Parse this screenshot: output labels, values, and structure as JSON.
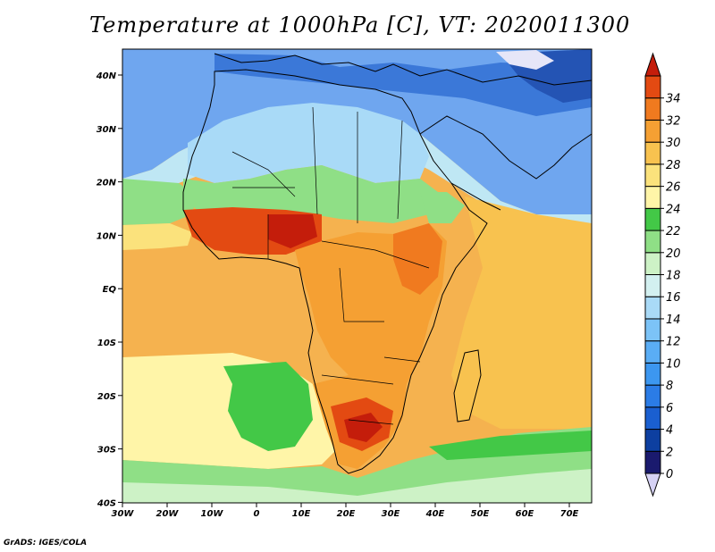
{
  "title": "Temperature at 1000hPa [C], VT: 2020011300",
  "credit": "GrADS: IGES/COLA",
  "lon_ticks": [
    "30W",
    "20W",
    "10W",
    "0",
    "10E",
    "20E",
    "30E",
    "40E",
    "50E",
    "60E",
    "70E"
  ],
  "lat_ticks": [
    "40N",
    "30N",
    "20N",
    "10N",
    "EQ",
    "10S",
    "20S",
    "30S",
    "40S"
  ],
  "colorbar": {
    "labels": [
      "0",
      "2",
      "4",
      "6",
      "8",
      "10",
      "12",
      "14",
      "16",
      "18",
      "20",
      "22",
      "24",
      "26",
      "28",
      "30",
      "32",
      "34"
    ],
    "colors": [
      "#1a1a6e",
      "#0d3fa0",
      "#1a5fd0",
      "#2b7ce6",
      "#3c97f0",
      "#5aadf5",
      "#7cc3f7",
      "#a9daf7",
      "#d3f0f0",
      "#cdf2c6",
      "#8fdf86",
      "#43c847",
      "#fff5a8",
      "#fbe27c",
      "#f8c24f",
      "#f5a033",
      "#f07a1f",
      "#e34a12",
      "#c41d0b"
    ],
    "under_color": "#d6d2f5",
    "over_color": "#c41d0b"
  }
}
